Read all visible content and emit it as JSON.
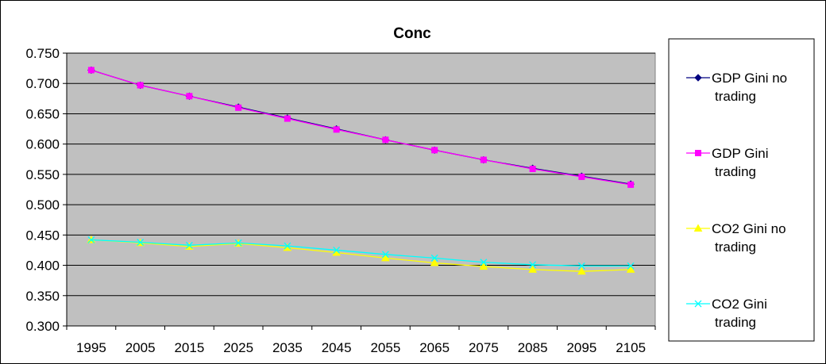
{
  "chart_data": {
    "type": "line",
    "title": "Conc",
    "xlabel": "",
    "ylabel": "",
    "categories": [
      "1995",
      "2005",
      "2015",
      "2025",
      "2035",
      "2045",
      "2055",
      "2065",
      "2075",
      "2085",
      "2095",
      "2105"
    ],
    "ylim": [
      0.3,
      0.75
    ],
    "yticks": [
      "0.300",
      "0.350",
      "0.400",
      "0.450",
      "0.500",
      "0.550",
      "0.600",
      "0.650",
      "0.700",
      "0.750"
    ],
    "grid": true,
    "legend_position": "right",
    "plot_background": "#c0c0c0",
    "series": [
      {
        "name": "GDP Gini no trading",
        "legend_lines": [
          "GDP Gini no",
          "trading"
        ],
        "color": "#000080",
        "marker": "diamond",
        "values": [
          0.722,
          0.697,
          0.679,
          0.661,
          0.643,
          0.625,
          0.607,
          0.59,
          0.574,
          0.56,
          0.547,
          0.534
        ]
      },
      {
        "name": "GDP Gini trading",
        "legend_lines": [
          "GDP Gini",
          "trading"
        ],
        "color": "#ff00ff",
        "marker": "square",
        "values": [
          0.722,
          0.697,
          0.679,
          0.66,
          0.642,
          0.624,
          0.607,
          0.59,
          0.574,
          0.559,
          0.546,
          0.533
        ]
      },
      {
        "name": "CO2 Gini no trading",
        "legend_lines": [
          "CO2 Gini no",
          "trading"
        ],
        "color": "#ffff00",
        "marker": "triangle",
        "values": [
          0.442,
          0.437,
          0.431,
          0.436,
          0.429,
          0.421,
          0.412,
          0.404,
          0.398,
          0.393,
          0.39,
          0.393
        ]
      },
      {
        "name": "CO2 Gini trading",
        "legend_lines": [
          "CO2 Gini",
          "trading"
        ],
        "color": "#00ffff",
        "marker": "x",
        "values": [
          0.442,
          0.438,
          0.433,
          0.437,
          0.432,
          0.425,
          0.418,
          0.412,
          0.405,
          0.401,
          0.399,
          0.399
        ]
      }
    ]
  }
}
